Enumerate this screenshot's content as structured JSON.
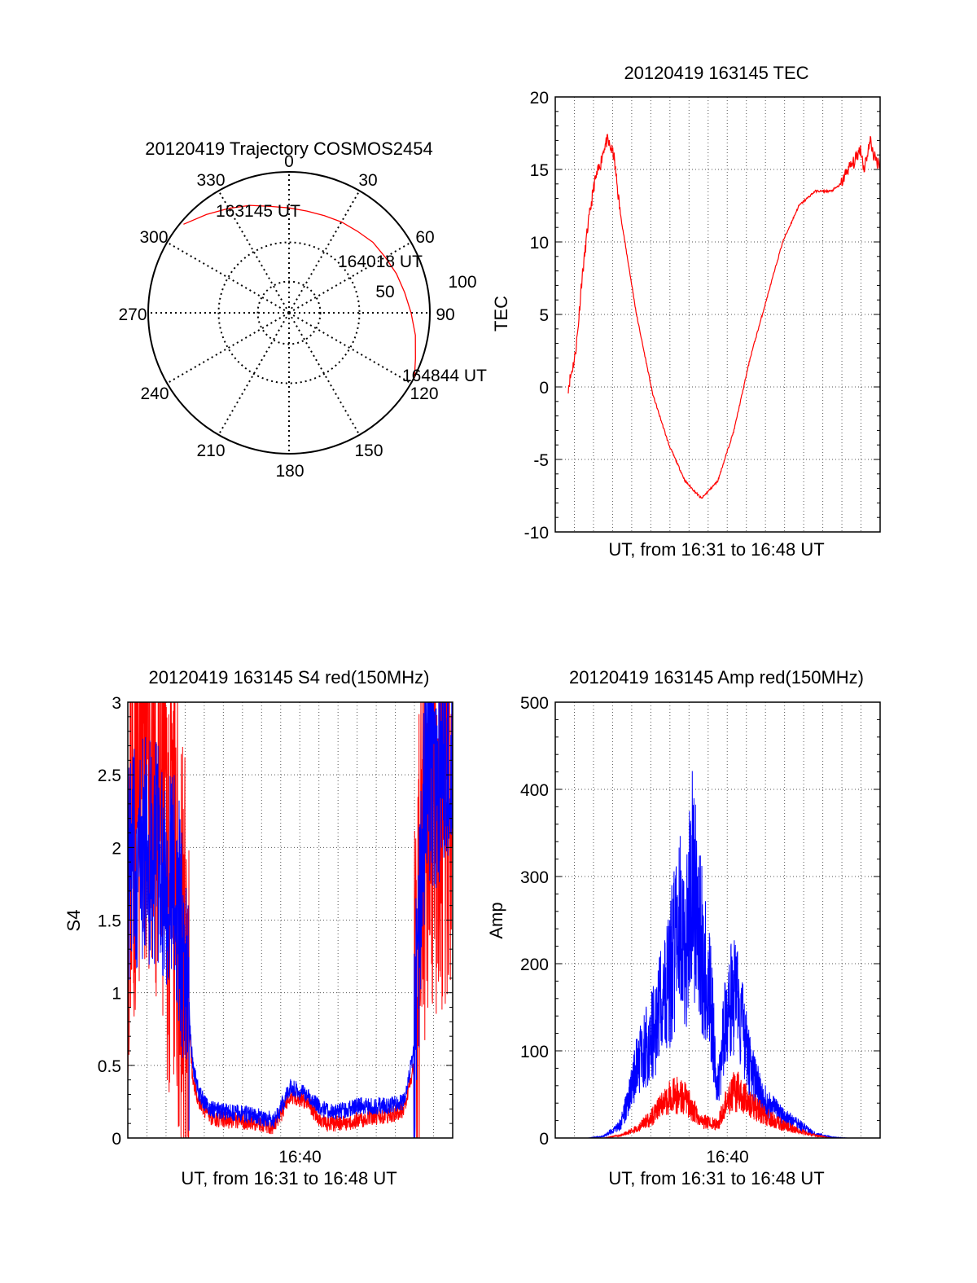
{
  "colors": {
    "red": "#ff0000",
    "blue": "#0000ff",
    "axis": "#000000",
    "grid": "#555555"
  },
  "chart_data": [
    {
      "id": "polar",
      "type": "polar",
      "title": "20120419 Trajectory COSMOS2454",
      "angle_labels": [
        "0",
        "30",
        "60",
        "90",
        "120",
        "150",
        "180",
        "210",
        "240",
        "270",
        "300",
        "330"
      ],
      "radial_labels": [
        "50",
        "100"
      ],
      "grid": true,
      "trajectory": {
        "color": "#ff0000",
        "points": [
          {
            "az": 310,
            "el": 2
          },
          {
            "az": 320,
            "el": 8
          },
          {
            "az": 330,
            "el": 13
          },
          {
            "az": 340,
            "el": 17
          },
          {
            "az": 350,
            "el": 21
          },
          {
            "az": 0,
            "el": 23
          },
          {
            "az": 10,
            "el": 24
          },
          {
            "az": 20,
            "el": 24
          },
          {
            "az": 30,
            "el": 23
          },
          {
            "az": 40,
            "el": 22
          },
          {
            "az": 50,
            "el": 20
          },
          {
            "az": 60,
            "el": 19
          },
          {
            "az": 70,
            "el": 17
          },
          {
            "az": 80,
            "el": 15
          },
          {
            "az": 90,
            "el": 12
          },
          {
            "az": 100,
            "el": 8
          },
          {
            "az": 110,
            "el": 4
          },
          {
            "az": 117,
            "el": 0
          }
        ]
      },
      "annotations": [
        {
          "text": "163145 UT",
          "az": 312,
          "el": 2
        },
        {
          "text": "164018 UT",
          "az": 52,
          "el": 20
        },
        {
          "text": "164844 UT",
          "az": 116,
          "el": 0
        }
      ]
    },
    {
      "id": "tec",
      "type": "line",
      "title": "20120419 163145 TEC",
      "xlabel": "UT, from 16:31 to 16:48 UT",
      "ylabel": "TEC",
      "xlim": [
        0,
        1
      ],
      "ylim": [
        -10,
        20
      ],
      "yticks": [
        "-10",
        "-5",
        "0",
        "5",
        "10",
        "15",
        "20"
      ],
      "xticks": [],
      "grid": true,
      "series": [
        {
          "color": "#ff0000",
          "x": [
            0.04,
            0.05,
            0.06,
            0.07,
            0.08,
            0.09,
            0.1,
            0.12,
            0.14,
            0.15,
            0.16,
            0.17,
            0.18,
            0.2,
            0.25,
            0.3,
            0.35,
            0.4,
            0.45,
            0.5,
            0.55,
            0.57,
            0.6,
            0.65,
            0.7,
            0.75,
            0.8,
            0.85,
            0.88,
            0.9,
            0.92,
            0.93,
            0.94,
            0.95,
            0.96,
            0.97,
            0.98,
            0.99,
            1.0
          ],
          "y": [
            0,
            1,
            2,
            4,
            7,
            9,
            11,
            14,
            15.5,
            16.5,
            17,
            16.5,
            16,
            12,
            5,
            -0.5,
            -4,
            -6.5,
            -7.7,
            -6.5,
            -3,
            -1,
            2,
            6,
            10,
            12.5,
            13.5,
            13.5,
            14,
            15,
            15.5,
            16,
            16.5,
            15,
            16,
            17,
            16,
            15.5,
            15.5
          ]
        }
      ]
    },
    {
      "id": "s4",
      "type": "line",
      "title": "20120419 163145 S4 red(150MHz)",
      "xlabel": "UT, from 16:31 to 16:48 UT",
      "ylabel": "S4",
      "xlim": [
        0,
        1
      ],
      "ylim": [
        0,
        3
      ],
      "yticks": [
        "0",
        "0.5",
        "1",
        "1.5",
        "2",
        "2.5",
        "3"
      ],
      "xticks": [
        {
          "x": 0.53,
          "label": "16:40"
        }
      ],
      "grid": true,
      "series": [
        {
          "color": "#ff0000",
          "x": [
            0.0,
            0.05,
            0.1,
            0.15,
            0.18,
            0.2,
            0.22,
            0.25,
            0.3,
            0.35,
            0.4,
            0.45,
            0.47,
            0.5,
            0.55,
            0.6,
            0.65,
            0.7,
            0.75,
            0.8,
            0.85,
            0.88,
            0.9,
            0.92,
            0.95,
            1.0
          ],
          "y": [
            2.0,
            2.8,
            2.2,
            1.6,
            1.0,
            0.4,
            0.25,
            0.15,
            0.12,
            0.12,
            0.1,
            0.08,
            0.15,
            0.3,
            0.25,
            0.1,
            0.1,
            0.12,
            0.15,
            0.15,
            0.2,
            0.5,
            1.5,
            2.5,
            2.3,
            2.4
          ]
        },
        {
          "color": "#0000ff",
          "x": [
            0.0,
            0.05,
            0.1,
            0.15,
            0.18,
            0.2,
            0.22,
            0.25,
            0.3,
            0.35,
            0.4,
            0.45,
            0.47,
            0.5,
            0.55,
            0.6,
            0.65,
            0.7,
            0.75,
            0.8,
            0.85,
            0.88,
            0.9,
            0.92,
            0.95,
            1.0
          ],
          "y": [
            1.8,
            2.0,
            1.9,
            1.7,
            1.1,
            0.5,
            0.3,
            0.2,
            0.18,
            0.17,
            0.15,
            0.12,
            0.2,
            0.35,
            0.3,
            0.2,
            0.18,
            0.22,
            0.22,
            0.22,
            0.25,
            0.6,
            1.6,
            2.6,
            2.5,
            2.6
          ]
        }
      ]
    },
    {
      "id": "amp",
      "type": "line",
      "title": "20120419 163145 Amp red(150MHz)",
      "xlabel": "UT, from 16:31 to 16:48 UT",
      "ylabel": "Amp",
      "xlim": [
        0,
        1
      ],
      "ylim": [
        0,
        500
      ],
      "yticks": [
        "0",
        "100",
        "200",
        "300",
        "400",
        "500"
      ],
      "xticks": [
        {
          "x": 0.53,
          "label": "16:40"
        }
      ],
      "grid": true,
      "series": [
        {
          "color": "#0000ff",
          "x": [
            0.0,
            0.1,
            0.15,
            0.2,
            0.23,
            0.25,
            0.3,
            0.35,
            0.38,
            0.4,
            0.42,
            0.45,
            0.48,
            0.5,
            0.52,
            0.55,
            0.58,
            0.6,
            0.62,
            0.65,
            0.7,
            0.75,
            0.8,
            0.85,
            0.9,
            1.0
          ],
          "y": [
            0,
            0,
            2,
            15,
            50,
            80,
            120,
            180,
            250,
            200,
            300,
            220,
            150,
            60,
            120,
            170,
            120,
            80,
            60,
            40,
            25,
            15,
            5,
            1,
            0,
            0
          ]
        },
        {
          "color": "#ff0000",
          "x": [
            0.0,
            0.15,
            0.2,
            0.25,
            0.3,
            0.35,
            0.38,
            0.4,
            0.45,
            0.5,
            0.52,
            0.55,
            0.58,
            0.6,
            0.65,
            0.7,
            0.75,
            0.8,
            0.85,
            1.0
          ],
          "y": [
            0,
            0,
            3,
            10,
            25,
            45,
            50,
            45,
            20,
            15,
            35,
            55,
            50,
            40,
            25,
            15,
            8,
            3,
            0,
            0
          ]
        }
      ]
    }
  ]
}
